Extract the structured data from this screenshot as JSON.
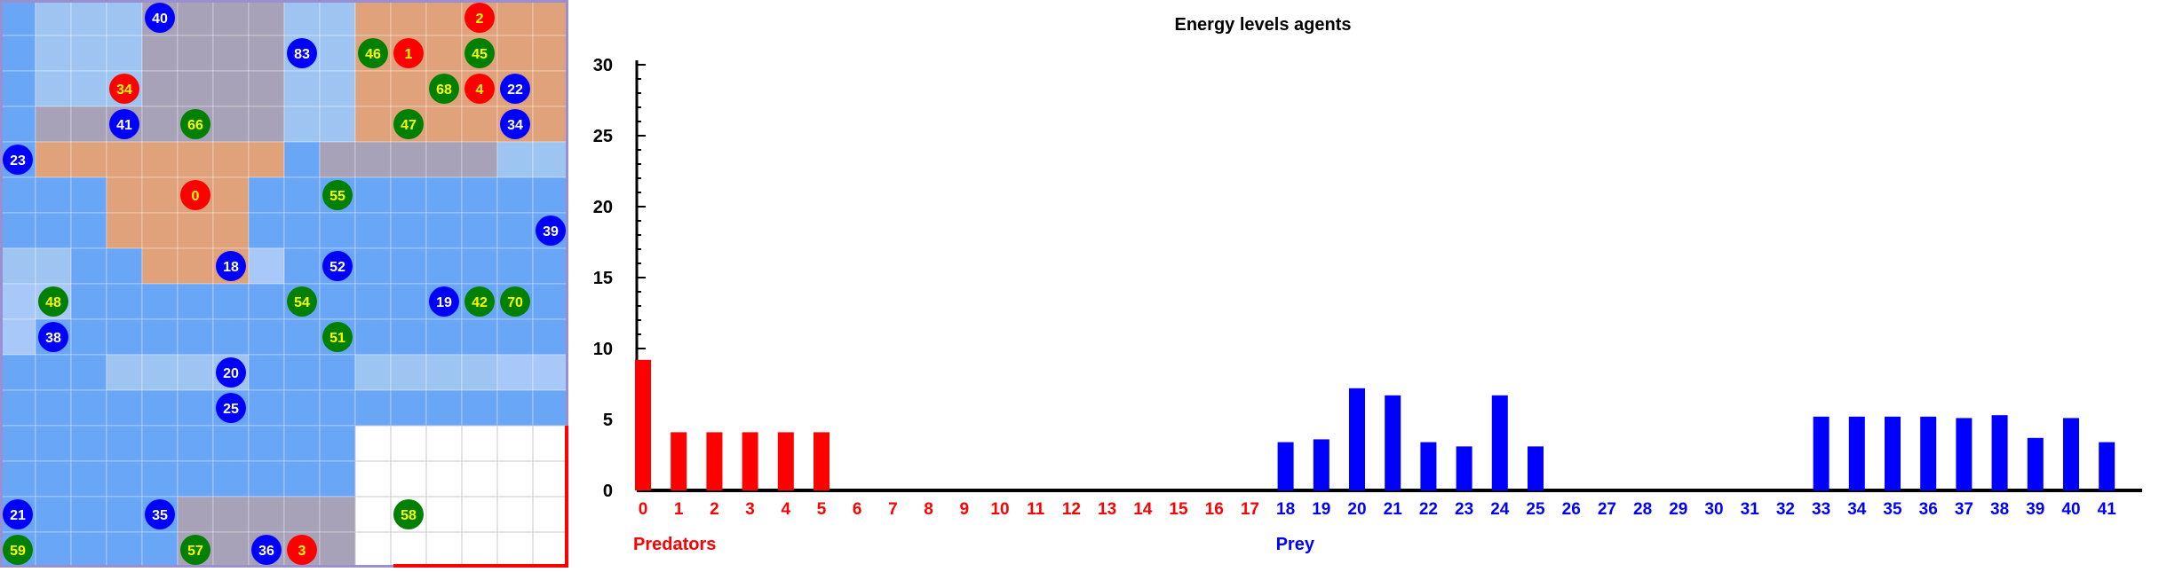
{
  "grid": {
    "columns": 16,
    "rows": 16,
    "legend_colors": {
      "predator": "#ff0000",
      "prey": "#0000ff",
      "food": "#008000",
      "label": "#ffff00",
      "label_alt": "#ffffff"
    },
    "cells": [
      "1222333322444444",
      "1222333322444444",
      "1222333322444444",
      "1333333322444444",
      "1444444413333322",
      "1114444111111111",
      "1114444111111111",
      "2211444011111111",
      "0011111111111111",
      "0111111111111111",
      "1112222111222200",
      "1111111111111111",
      "1111111111888888",
      "1111111111888888",
      "1111133333888888",
      "1111133333888888"
    ],
    "cell_colors": {
      "0": "#a9c8fa",
      "1": "#6aa6f6",
      "2": "#9ec5f2",
      "3": "#a8a2b8",
      "4": "#e0a27a",
      "5": "#c9a8a8",
      "8": "#ffffff"
    },
    "agents": [
      {
        "id": "40",
        "type": "prey",
        "col": 4,
        "row": 0
      },
      {
        "id": "2",
        "type": "predator",
        "col": 13,
        "row": 0
      },
      {
        "id": "83",
        "type": "prey",
        "col": 8,
        "row": 1
      },
      {
        "id": "46",
        "type": "food",
        "col": 10,
        "row": 1
      },
      {
        "id": "1",
        "type": "predator",
        "col": 11,
        "row": 1
      },
      {
        "id": "45",
        "type": "food",
        "col": 13,
        "row": 1
      },
      {
        "id": "34",
        "type": "predator",
        "col": 3,
        "row": 2
      },
      {
        "id": "68",
        "type": "food",
        "col": 12,
        "row": 2
      },
      {
        "id": "4",
        "type": "predator",
        "col": 13,
        "row": 2
      },
      {
        "id": "22",
        "type": "prey",
        "col": 14,
        "row": 2
      },
      {
        "id": "41",
        "type": "prey",
        "col": 3,
        "row": 3
      },
      {
        "id": "66",
        "type": "food",
        "col": 5,
        "row": 3
      },
      {
        "id": "47",
        "type": "food",
        "col": 11,
        "row": 3
      },
      {
        "id": "34",
        "type": "prey",
        "col": 14,
        "row": 3
      },
      {
        "id": "23",
        "type": "prey",
        "col": 0,
        "row": 4
      },
      {
        "id": "0",
        "type": "predator",
        "col": 5,
        "row": 5
      },
      {
        "id": "55",
        "type": "food",
        "col": 9,
        "row": 5
      },
      {
        "id": "39",
        "type": "prey",
        "col": 15,
        "row": 6
      },
      {
        "id": "18",
        "type": "prey",
        "col": 6,
        "row": 7
      },
      {
        "id": "52",
        "type": "prey",
        "col": 9,
        "row": 7
      },
      {
        "id": "48",
        "type": "food",
        "col": 1,
        "row": 8
      },
      {
        "id": "54",
        "type": "food",
        "col": 8,
        "row": 8
      },
      {
        "id": "19",
        "type": "prey",
        "col": 12,
        "row": 8
      },
      {
        "id": "42",
        "type": "food",
        "col": 13,
        "row": 8
      },
      {
        "id": "70",
        "type": "food",
        "col": 14,
        "row": 8
      },
      {
        "id": "38",
        "type": "prey",
        "col": 1,
        "row": 9
      },
      {
        "id": "51",
        "type": "food",
        "col": 9,
        "row": 9
      },
      {
        "id": "20",
        "type": "prey",
        "col": 6,
        "row": 10
      },
      {
        "id": "25",
        "type": "prey",
        "col": 6,
        "row": 11
      },
      {
        "id": "21",
        "type": "prey",
        "col": 0,
        "row": 14
      },
      {
        "id": "35",
        "type": "prey",
        "col": 4,
        "row": 14
      },
      {
        "id": "58",
        "type": "food",
        "col": 11,
        "row": 14
      },
      {
        "id": "59",
        "type": "food",
        "col": 0,
        "row": 15
      },
      {
        "id": "57",
        "type": "food",
        "col": 5,
        "row": 15
      },
      {
        "id": "36",
        "type": "prey",
        "col": 7,
        "row": 15
      },
      {
        "id": "3",
        "type": "predator",
        "col": 8,
        "row": 15
      }
    ]
  },
  "chart_data": {
    "type": "bar",
    "title": "Energy levels agents",
    "xlabel": "",
    "ylabel": "",
    "ylim": [
      0,
      30
    ],
    "yticks": [
      0,
      5,
      10,
      15,
      20,
      25,
      30
    ],
    "categories": [
      "0",
      "1",
      "2",
      "3",
      "4",
      "5",
      "6",
      "7",
      "8",
      "9",
      "10",
      "11",
      "12",
      "13",
      "14",
      "15",
      "16",
      "17",
      "18",
      "19",
      "20",
      "21",
      "22",
      "23",
      "24",
      "25",
      "26",
      "27",
      "28",
      "29",
      "30",
      "31",
      "32",
      "33",
      "34",
      "35",
      "36",
      "37",
      "38",
      "39",
      "40",
      "41"
    ],
    "values": [
      9.2,
      4.1,
      4.1,
      4.1,
      4.1,
      4.1,
      0,
      0,
      0,
      0,
      0,
      0,
      0,
      0,
      0,
      0,
      0,
      0,
      3.4,
      3.6,
      7.2,
      6.7,
      3.4,
      3.1,
      6.7,
      3.1,
      0,
      0,
      0,
      0,
      0,
      0,
      0,
      5.2,
      5.2,
      5.2,
      5.2,
      5.1,
      5.3,
      3.7,
      5.1,
      3.4
    ],
    "groups": [
      {
        "name": "Predators",
        "from": 0,
        "to": 17,
        "color": "#ff0000"
      },
      {
        "name": "Prey",
        "from": 18,
        "to": 41,
        "color": "#0000ff"
      }
    ]
  }
}
